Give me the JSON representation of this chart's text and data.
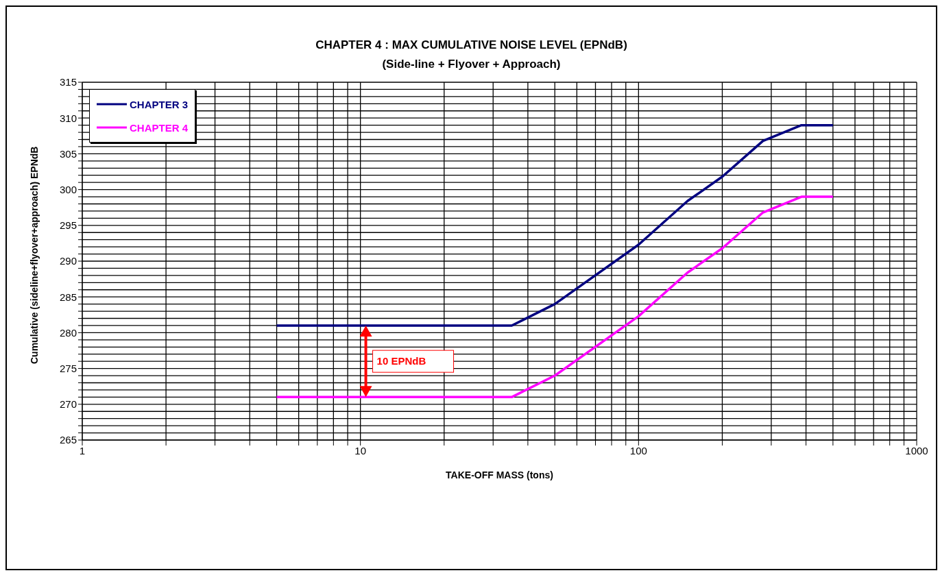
{
  "chart_data": {
    "type": "line",
    "title": "CHAPTER 4 : MAX CUMULATIVE NOISE LEVEL (EPNdB)",
    "subtitle": "(Side-line + Flyover + Approach)",
    "xlabel": "TAKE-OFF MASS (tons)",
    "ylabel": "Cumulative (sideline+flyover+approach) EPNdB",
    "x": [
      5,
      35,
      50,
      100,
      150,
      200,
      280,
      385,
      500
    ],
    "series": [
      {
        "name": "CHAPTER 3",
        "color": "#000080",
        "values": [
          281,
          281,
          284,
          292.3,
          298.4,
          301.8,
          306.8,
          309,
          309
        ]
      },
      {
        "name": "CHAPTER 4",
        "color": "#ff00ff",
        "values": [
          271,
          271,
          274,
          282.3,
          288.4,
          291.8,
          296.8,
          299,
          299
        ]
      }
    ],
    "log": "x",
    "xlim": [
      1,
      1000
    ],
    "xticks": [
      1,
      {
        "value": 2,
        "label": null
      },
      {
        "value": 3,
        "label": null
      },
      {
        "value": 4,
        "label": null
      },
      {
        "value": 5,
        "label": null
      },
      {
        "value": 6,
        "label": null
      },
      {
        "value": 7,
        "label": null
      },
      {
        "value": 8,
        "label": null
      },
      {
        "value": 9,
        "label": null
      },
      10,
      {
        "value": 20,
        "label": null
      },
      {
        "value": 30,
        "label": null
      },
      {
        "value": 40,
        "label": null
      },
      {
        "value": 50,
        "label": null
      },
      {
        "value": 60,
        "label": null
      },
      {
        "value": 70,
        "label": null
      },
      {
        "value": 80,
        "label": null
      },
      {
        "value": 90,
        "label": null
      },
      100,
      {
        "value": 200,
        "label": null
      },
      {
        "value": 300,
        "label": null
      },
      {
        "value": 400,
        "label": null
      },
      {
        "value": 500,
        "label": null
      },
      {
        "value": 600,
        "label": null
      },
      {
        "value": 700,
        "label": null
      },
      {
        "value": 800,
        "label": null
      },
      {
        "value": 900,
        "label": null
      },
      1000
    ],
    "ylim": [
      265,
      315
    ],
    "yticks": [
      265,
      {
        "value": 266,
        "label": null
      },
      {
        "value": 267,
        "label": null
      },
      {
        "value": 268,
        "label": null
      },
      {
        "value": 269,
        "label": null
      },
      270,
      {
        "value": 271,
        "label": null
      },
      {
        "value": 272,
        "label": null
      },
      {
        "value": 273,
        "label": null
      },
      {
        "value": 274,
        "label": null
      },
      275,
      {
        "value": 276,
        "label": null
      },
      {
        "value": 277,
        "label": null
      },
      {
        "value": 278,
        "label": null
      },
      {
        "value": 279,
        "label": null
      },
      280,
      {
        "value": 281,
        "label": null
      },
      {
        "value": 282,
        "label": null
      },
      {
        "value": 283,
        "label": null
      },
      {
        "value": 284,
        "label": null
      },
      285,
      {
        "value": 286,
        "label": null
      },
      {
        "value": 287,
        "label": null
      },
      {
        "value": 288,
        "label": null
      },
      {
        "value": 289,
        "label": null
      },
      290,
      {
        "value": 291,
        "label": null
      },
      {
        "value": 292,
        "label": null
      },
      {
        "value": 293,
        "label": null
      },
      {
        "value": 294,
        "label": null
      },
      295,
      {
        "value": 296,
        "label": null
      },
      {
        "value": 297,
        "label": null
      },
      {
        "value": 298,
        "label": null
      },
      {
        "value": 299,
        "label": null
      },
      300,
      {
        "value": 301,
        "label": null
      },
      {
        "value": 302,
        "label": null
      },
      {
        "value": 303,
        "label": null
      },
      {
        "value": 304,
        "label": null
      },
      305,
      {
        "value": 306,
        "label": null
      },
      {
        "value": 307,
        "label": null
      },
      {
        "value": 308,
        "label": null
      },
      {
        "value": 309,
        "label": null
      },
      310,
      {
        "value": 311,
        "label": null
      },
      {
        "value": 312,
        "label": null
      },
      {
        "value": 313,
        "label": null
      },
      {
        "value": 314,
        "label": null
      },
      315
    ],
    "grid": true,
    "legend": "top left",
    "marker": "none",
    "line_style": "solid",
    "annotations": [
      "10 EPNdB"
    ]
  }
}
